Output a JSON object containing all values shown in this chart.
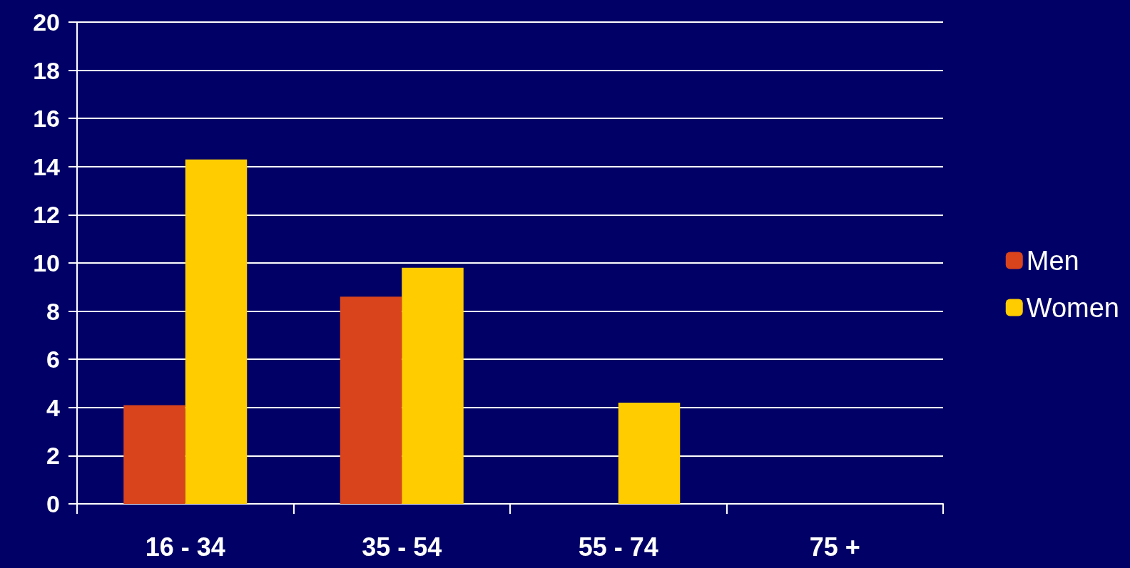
{
  "chart_data": {
    "type": "bar",
    "categories": [
      "16 - 34",
      "35 - 54",
      "55 - 74",
      "75 +"
    ],
    "series": [
      {
        "name": "Men",
        "color": "#d9441c",
        "values": [
          4.1,
          8.6,
          0,
          0
        ]
      },
      {
        "name": "Women",
        "color": "#ffcc00",
        "values": [
          14.3,
          9.8,
          4.2,
          0
        ]
      }
    ],
    "ylim": [
      0,
      20
    ],
    "yticks": [
      0,
      2,
      4,
      6,
      8,
      10,
      12,
      14,
      16,
      18,
      20
    ],
    "grid": "y",
    "legend": "right"
  }
}
